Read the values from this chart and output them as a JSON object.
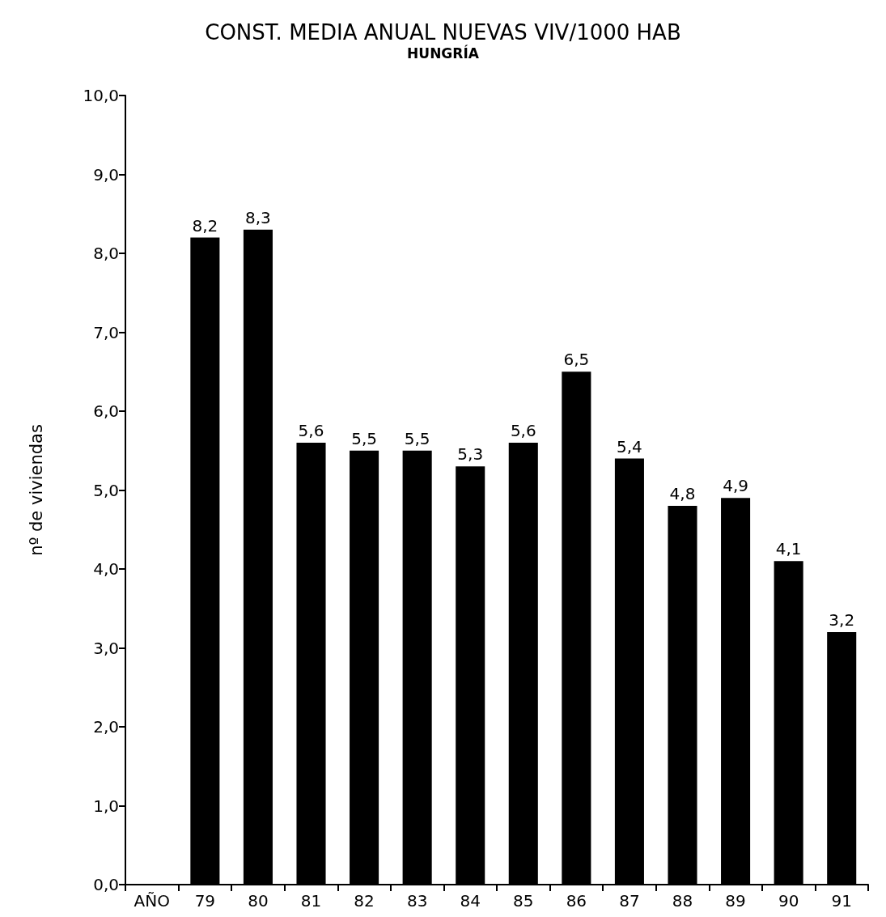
{
  "chart_data": {
    "type": "bar",
    "title": "CONST. MEDIA ANUAL NUEVAS VIV/1000 HAB",
    "subtitle": "HUNGRÍA",
    "ylabel": "nº de viviendas",
    "categories": [
      "AÑO",
      "79",
      "80",
      "81",
      "82",
      "83",
      "84",
      "85",
      "86",
      "87",
      "88",
      "89",
      "90",
      "91"
    ],
    "values": [
      null,
      8.2,
      8.3,
      5.6,
      5.5,
      5.5,
      5.3,
      5.6,
      6.5,
      5.4,
      4.8,
      4.9,
      4.1,
      3.2
    ],
    "value_labels": [
      null,
      "8,2",
      "8,3",
      "5,6",
      "5,5",
      "5,5",
      "5,3",
      "5,6",
      "6,5",
      "5,4",
      "4,8",
      "4,9",
      "4,1",
      "3,2"
    ],
    "color": "#000000",
    "ylim": [
      0,
      10
    ],
    "yticks": [
      {
        "value": 0,
        "label": "0,0"
      },
      {
        "value": 1,
        "label": "1,0"
      },
      {
        "value": 2,
        "label": "2,0"
      },
      {
        "value": 3,
        "label": "3,0"
      },
      {
        "value": 4,
        "label": "4,0"
      },
      {
        "value": 5,
        "label": "5,0"
      },
      {
        "value": 6,
        "label": "6,0"
      },
      {
        "value": 7,
        "label": "7,0"
      },
      {
        "value": 8,
        "label": "8,0"
      },
      {
        "value": 9,
        "label": "9,0"
      },
      {
        "value": 10,
        "label": "10,0"
      }
    ],
    "grid": false
  }
}
